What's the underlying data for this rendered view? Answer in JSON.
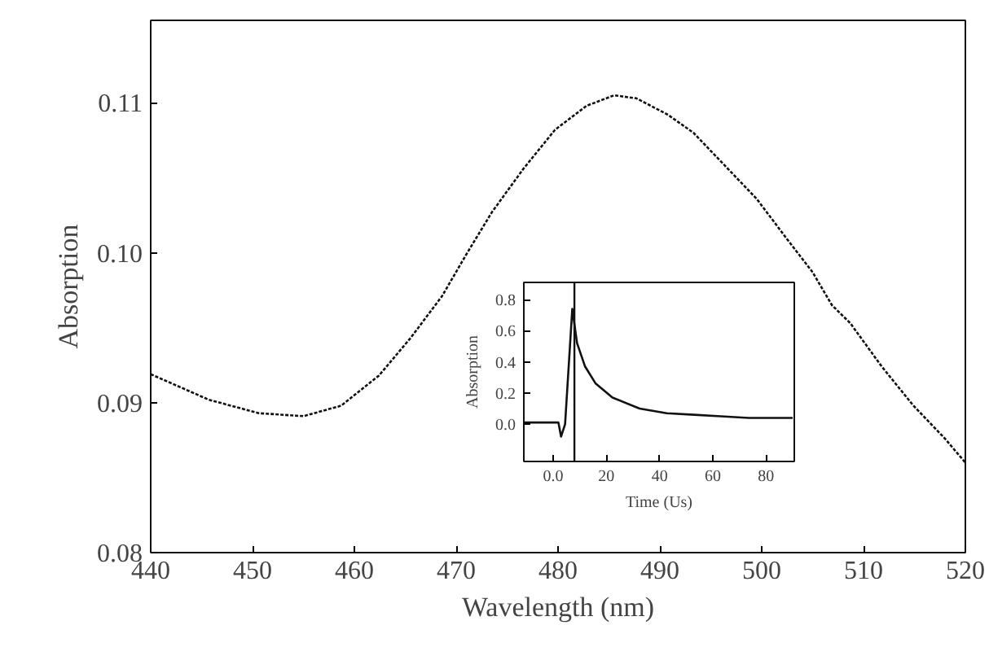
{
  "chart_data": [
    {
      "type": "line",
      "xlabel": "Wavelength (nm)",
      "ylabel": "Absorption",
      "xlim": [
        440,
        520
      ],
      "ylim": [
        0.08,
        0.1155
      ],
      "xticks": [
        440,
        450,
        460,
        470,
        480,
        490,
        500,
        510,
        520
      ],
      "yticks": [
        {
          "value": 0.08,
          "label": "0.08"
        },
        {
          "value": 0.09,
          "label": "0.09"
        },
        {
          "value": 0.1,
          "label": "0.10"
        },
        {
          "value": 0.11,
          "label": "0.11"
        }
      ],
      "grid": false,
      "line_style": "dotted",
      "series": [
        {
          "color": "#111111",
          "x": [
            440,
            445.7,
            450.6,
            455,
            458.7,
            462.4,
            465.5,
            468.6,
            471,
            473.5,
            476.6,
            479.7,
            482.8,
            485.5,
            487.7,
            490.8,
            493.3,
            496.4,
            499.5,
            502.5,
            505,
            506.9,
            508.7,
            511.8,
            514.9,
            518,
            520
          ],
          "values": [
            0.0919,
            0.0902,
            0.0893,
            0.0891,
            0.0898,
            0.0918,
            0.0943,
            0.0971,
            0.0999,
            0.1027,
            0.1056,
            0.1082,
            0.1098,
            0.1105,
            0.1103,
            0.1092,
            0.108,
            0.1058,
            0.1036,
            0.1009,
            0.0987,
            0.0965,
            0.0953,
            0.0924,
            0.0898,
            0.0876,
            0.086
          ]
        }
      ]
    },
    {
      "type": "line",
      "xlabel": "Time (Us)",
      "ylabel": "Absorption",
      "xlim": [
        -11,
        90.6
      ],
      "ylim": [
        -0.24,
        0.91
      ],
      "xticks": [
        {
          "value": 0,
          "label": "0.0"
        },
        20,
        40,
        60,
        80
      ],
      "yticks": [
        {
          "value": 0,
          "label": "0.0"
        },
        0.2,
        0.4,
        0.6,
        0.8
      ],
      "grid": false,
      "line_style": "solid",
      "ref_lines": [
        {
          "axis": "x",
          "value": 8,
          "color": "#111111"
        }
      ],
      "series": [
        {
          "color": "#111111",
          "x": [
            -11,
            2,
            3,
            4.5,
            7.2,
            9,
            12,
            16,
            22.3,
            32.5,
            42.7,
            53,
            63,
            73.5,
            90
          ],
          "values": [
            0.01,
            0.01,
            -0.08,
            0.0,
            0.74,
            0.52,
            0.37,
            0.26,
            0.17,
            0.1,
            0.07,
            0.06,
            0.05,
            0.04,
            0.04
          ]
        }
      ]
    }
  ]
}
